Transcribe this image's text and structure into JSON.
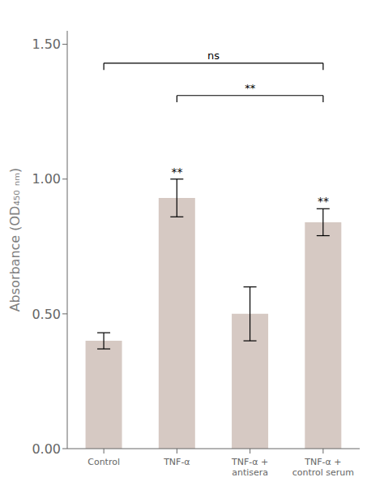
{
  "chart_data": {
    "type": "bar",
    "categories": [
      "Control",
      "TNF-α",
      "TNF-α +\nantisera",
      "TNF-α +\ncontrol serum"
    ],
    "values": [
      0.4,
      0.93,
      0.5,
      0.84
    ],
    "errors": [
      0.03,
      0.07,
      0.1,
      0.05
    ],
    "color": "#d6c9c3",
    "ylabel": "Absorbance (OD₄₅₀ ₙₘ)",
    "ylim": [
      0.0,
      1.55
    ],
    "yticks": [
      {
        "value": 0,
        "label": "0.00"
      },
      {
        "value": 0.5,
        "label": "0.50"
      },
      {
        "value": 1,
        "label": "1.00"
      },
      {
        "value": 1.5,
        "label": "1.50"
      }
    ],
    "grid": false,
    "annotations": [
      {
        "text": "**",
        "category": "TNF-α"
      },
      {
        "text": "**",
        "category": "TNF-α +\ncontrol serum"
      }
    ],
    "brackets": [
      {
        "from": "Control",
        "to": "TNF-α +\ncontrol serum",
        "y": 1.43,
        "text": "ns"
      },
      {
        "from": "TNF-α",
        "to": "TNF-α +\ncontrol serum",
        "y": 1.31,
        "text": "**"
      }
    ]
  }
}
